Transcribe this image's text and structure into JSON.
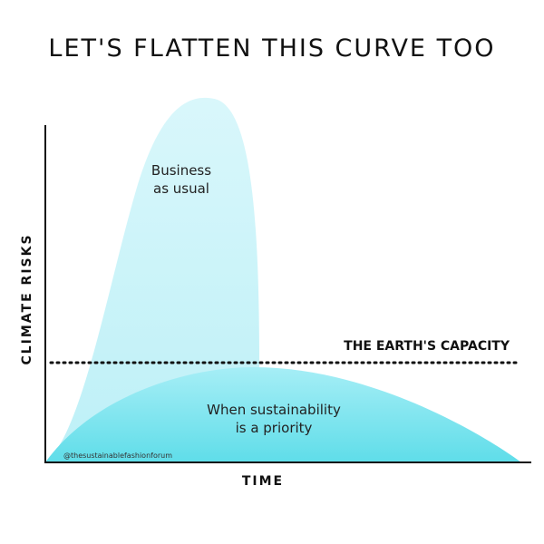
{
  "header": {
    "title": "LET'S FLATTEN THIS CURVE TOO"
  },
  "axes": {
    "y_label": "CLIMATE RISKS",
    "x_label": "TIME"
  },
  "curves": {
    "business_as_usual": [
      "Business",
      "as usual"
    ],
    "sustainability": [
      "When sustainability",
      "is a priority"
    ]
  },
  "capacity_label": "THE EARTH'S CAPACITY",
  "credit": "@thesustainablefashionforum"
}
